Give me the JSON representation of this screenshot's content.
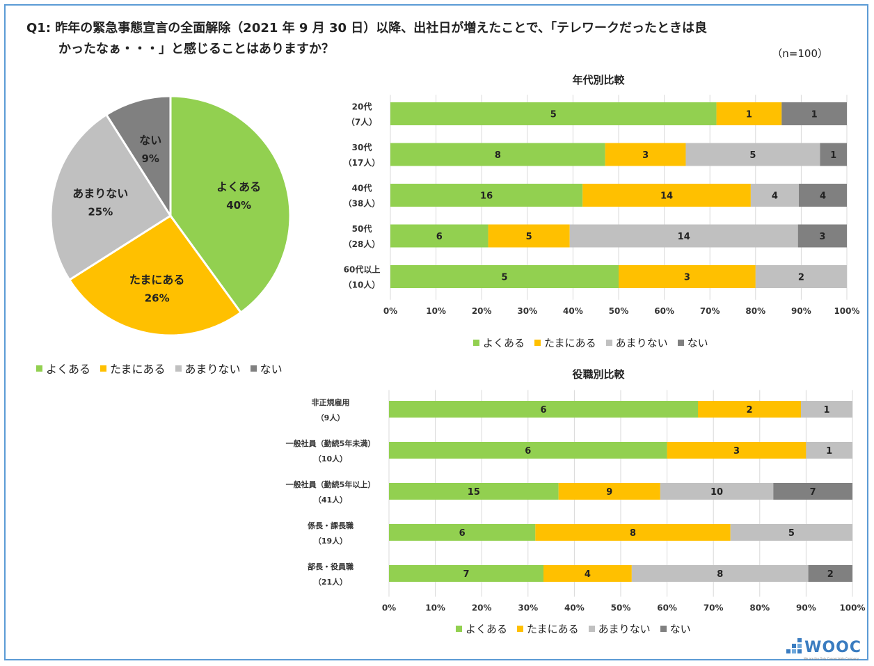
{
  "title": {
    "line1": "Q1:  昨年の緊急事態宣言の全面解除（2021 年 9 月 30 日）以降、出社日が増えたことで、「テレワークだったときは良",
    "line2": "かったなぁ・・・」と感じることはありますか？",
    "n": "（n=100）"
  },
  "colors": {
    "よくある": "#92d050",
    "たまにある": "#ffc000",
    "あまりない": "#c0c0c0",
    "ない": "#808080"
  },
  "legend": [
    "よくある",
    "たまにある",
    "あまりない",
    "ない"
  ],
  "chart_data": [
    {
      "type": "pie",
      "title": "",
      "labels": [
        "よくある",
        "たまにある",
        "あまりない",
        "ない"
      ],
      "values": [
        40,
        26,
        25,
        9
      ],
      "value_labels": [
        "40%",
        "26%",
        "25%",
        "9%"
      ]
    },
    {
      "type": "bar",
      "orientation": "horizontal-stacked-100",
      "title": "年代別比較",
      "categories": [
        "20代",
        "30代",
        "40代",
        "50代",
        "60代以上"
      ],
      "category_sublabels": [
        "（7人）",
        "（17人）",
        "（38人）",
        "（28人）",
        "（10人）"
      ],
      "series": [
        {
          "name": "よくある",
          "values": [
            5,
            8,
            16,
            6,
            5
          ]
        },
        {
          "name": "たまにある",
          "values": [
            1,
            3,
            14,
            5,
            3
          ]
        },
        {
          "name": "あまりない",
          "values": [
            0,
            5,
            4,
            14,
            2
          ]
        },
        {
          "name": "ない",
          "values": [
            1,
            1,
            4,
            3,
            0
          ]
        }
      ],
      "xticks": [
        "0%",
        "10%",
        "20%",
        "30%",
        "40%",
        "50%",
        "60%",
        "70%",
        "80%",
        "90%",
        "100%"
      ],
      "xlim": [
        0,
        100
      ]
    },
    {
      "type": "bar",
      "orientation": "horizontal-stacked-100",
      "title": "役職別比較",
      "categories": [
        "非正規雇用",
        "一般社員（勤続5年未満）",
        "一般社員（勤続5年以上）",
        "係長・課長職",
        "部長・役員職"
      ],
      "category_sublabels": [
        "（9人）",
        "（10人）",
        "（41人）",
        "（19人）",
        "（21人）"
      ],
      "series": [
        {
          "name": "よくある",
          "values": [
            6,
            6,
            15,
            6,
            7
          ]
        },
        {
          "name": "たまにある",
          "values": [
            2,
            3,
            9,
            8,
            4
          ]
        },
        {
          "name": "あまりない",
          "values": [
            1,
            1,
            10,
            5,
            8
          ]
        },
        {
          "name": "ない",
          "values": [
            0,
            0,
            7,
            0,
            2
          ]
        }
      ],
      "xticks": [
        "0%",
        "10%",
        "20%",
        "30%",
        "40%",
        "50%",
        "60%",
        "70%",
        "80%",
        "90%",
        "100%"
      ],
      "xlim": [
        0,
        100
      ]
    }
  ],
  "logo": {
    "text": "WOOC",
    "sub": "We are the Only Connectable Company"
  }
}
